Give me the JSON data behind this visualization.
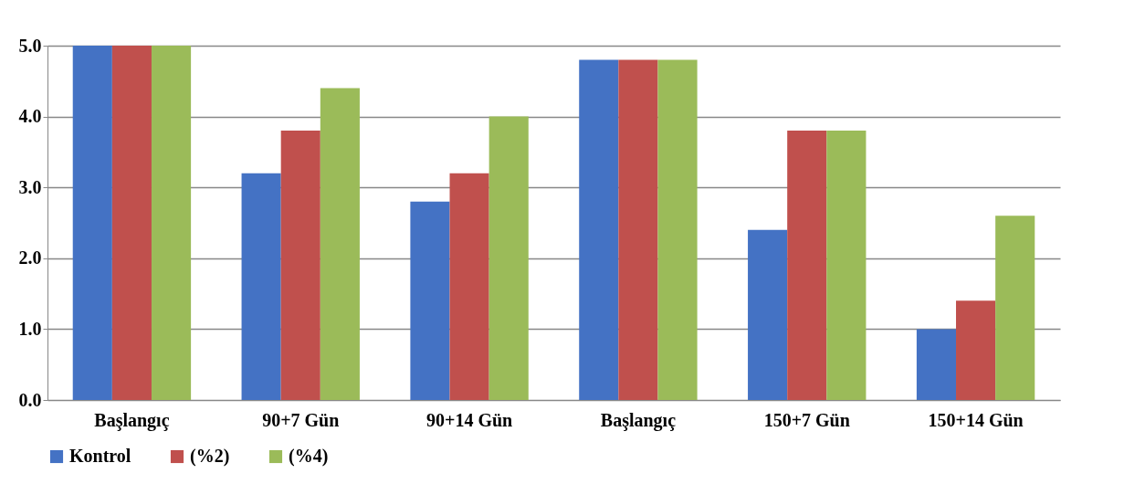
{
  "chart_data": {
    "type": "bar",
    "categories": [
      "Başlangıç",
      "90+7 Gün",
      "90+14 Gün",
      "Başlangıç",
      "150+7 Gün",
      "150+14 Gün"
    ],
    "series": [
      {
        "name": "Kontrol",
        "color": "#4472c4",
        "values": [
          5.0,
          3.2,
          2.8,
          4.8,
          2.4,
          1.0
        ]
      },
      {
        "name": "(%2)",
        "color": "#c0504d",
        "values": [
          5.0,
          3.8,
          3.2,
          4.8,
          3.8,
          1.4
        ]
      },
      {
        "name": "(%4)",
        "color": "#9bbb59",
        "values": [
          5.0,
          4.4,
          4.0,
          4.8,
          3.8,
          2.6
        ]
      }
    ],
    "ylim": [
      0,
      5
    ],
    "yticks": [
      {
        "value": 0,
        "label": "0.0"
      },
      {
        "value": 1,
        "label": "1.0"
      },
      {
        "value": 2,
        "label": "2.0"
      },
      {
        "value": 3,
        "label": "3.0"
      },
      {
        "value": 4,
        "label": "4.0"
      },
      {
        "value": 5,
        "label": "5.0"
      }
    ],
    "grid": "y",
    "legend": "bottom"
  }
}
